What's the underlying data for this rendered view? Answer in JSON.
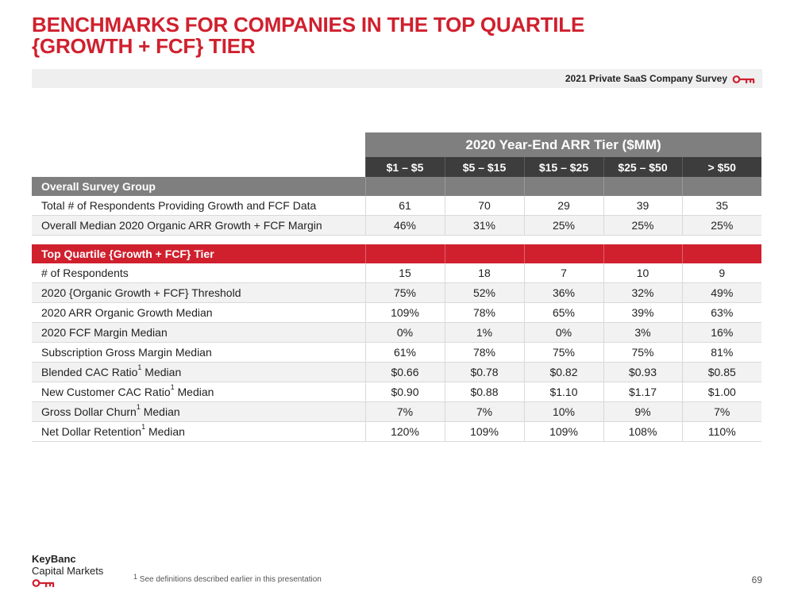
{
  "title": {
    "line1": "BENCHMARKS FOR COMPANIES IN THE TOP QUARTILE",
    "line2": "{GROWTH + FCF} TIER"
  },
  "banner": {
    "text": "2021 Private SaaS Company Survey",
    "icon": "key-icon",
    "accent_color": "#d0202e"
  },
  "table": {
    "header": "2020 Year-End ARR Tier ($MM)",
    "tiers": [
      "$1 – $5",
      "$5 – $15",
      "$15 – $25",
      "$25 – $50",
      "> $50"
    ],
    "sections": [
      {
        "label": "Overall Survey Group",
        "color": "#7f7f7f",
        "rows": [
          {
            "label": "Total # of Respondents Providing Growth and FCF Data",
            "values": [
              "61",
              "70",
              "29",
              "39",
              "35"
            ]
          },
          {
            "label": "Overall Median 2020 Organic ARR Growth + FCF Margin",
            "values": [
              "46%",
              "31%",
              "25%",
              "25%",
              "25%"
            ]
          }
        ]
      },
      {
        "label": "Top Quartile {Growth + FCF} Tier",
        "color": "#d0202e",
        "rows": [
          {
            "label": "# of Respondents",
            "values": [
              "15",
              "18",
              "7",
              "10",
              "9"
            ]
          },
          {
            "label": "2020 {Organic Growth + FCF} Threshold",
            "values": [
              "75%",
              "52%",
              "36%",
              "32%",
              "49%"
            ]
          },
          {
            "label": "2020 ARR Organic Growth Median",
            "values": [
              "109%",
              "78%",
              "65%",
              "39%",
              "63%"
            ]
          },
          {
            "label": "2020 FCF Margin Median",
            "values": [
              "0%",
              "1%",
              "0%",
              "3%",
              "16%"
            ]
          },
          {
            "label": "Subscription Gross Margin Median",
            "values": [
              "61%",
              "78%",
              "75%",
              "75%",
              "81%"
            ]
          },
          {
            "label_pre": "Blended CAC Ratio",
            "label_sup": "1",
            "label_post": " Median",
            "values": [
              "$0.66",
              "$0.78",
              "$0.82",
              "$0.93",
              "$0.85"
            ]
          },
          {
            "label_pre": "New Customer CAC Ratio",
            "label_sup": "1",
            "label_post": " Median",
            "values": [
              "$0.90",
              "$0.88",
              "$1.10",
              "$1.17",
              "$1.00"
            ]
          },
          {
            "label_pre": "Gross Dollar Churn",
            "label_sup": "1",
            "label_post": " Median",
            "values": [
              "7%",
              "7%",
              "10%",
              "9%",
              "7%"
            ]
          },
          {
            "label_pre": "Net Dollar Retention",
            "label_sup": "1",
            "label_post": " Median",
            "values": [
              "120%",
              "109%",
              "109%",
              "108%",
              "110%"
            ]
          }
        ]
      }
    ]
  },
  "footer": {
    "logo_brand": "KeyBanc",
    "logo_sub": "Capital Markets",
    "logo_icon": "key-icon",
    "footnote_sup": "1",
    "footnote": " See definitions described earlier in this presentation",
    "page_number": "69"
  }
}
